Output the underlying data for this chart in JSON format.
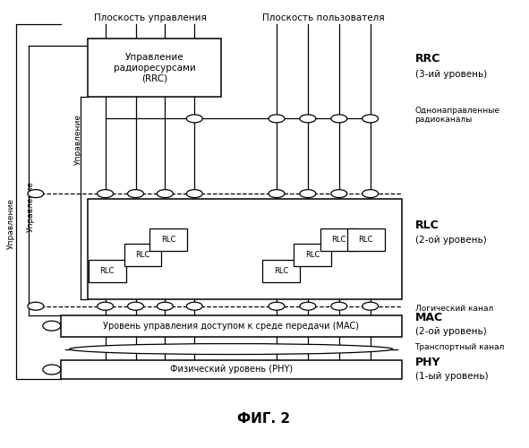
{
  "title": "ФИГ. 2",
  "bg_color": "#ffffff",
  "label_ploskost_upravleniya": "Плоскость управления",
  "label_ploskost_polzovatelya": "Плоскость пользователя",
  "label_rrc": "RRC",
  "label_rrc2": "(3-ий уровень)",
  "label_rlc": "RLC",
  "label_rlc2": "(2-ой уровень)",
  "label_mac": "MAC",
  "label_mac2": "(2-ой уровень)",
  "label_phy": "PHY",
  "label_phy2": "(1-ый уровень)",
  "label_upravlenie1": "Управление",
  "label_upravlenie2": "Управление",
  "label_upravlenie3": "Управление",
  "label_rrc_box": "Управление\nрадиоресурсами\n(RRC)",
  "label_odnonapravlennye": "Однонаправленные\nрадиоканалы",
  "label_logicheskiy": "Логический канал",
  "label_transportnyy": "Транспортный канал",
  "label_mac_full": "Уровень управления доступом к среде передачи (MAC)",
  "label_phy_full": "Физический уровень (PHY)",
  "label_rlc_text": "RLC"
}
